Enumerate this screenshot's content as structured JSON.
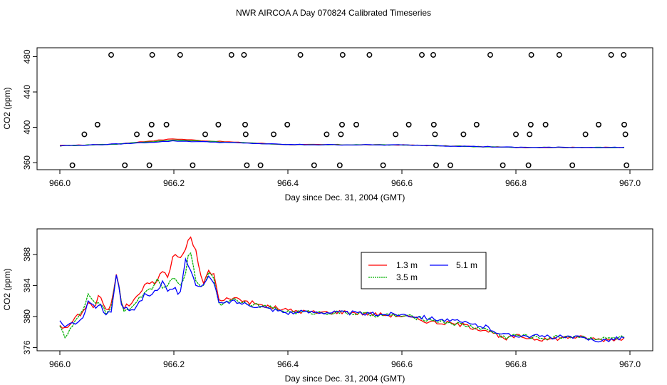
{
  "title": "NWR AIRCOA A  Day 070824  Calibrated Timeseries",
  "colors": {
    "h13": "#ff0000",
    "h35": "#00b000",
    "h51": "#0000ff",
    "axis": "#000000"
  },
  "chart_data": [
    {
      "type": "scatter+line",
      "title": "NWR AIRCOA A  Day 070824  Calibrated Timeseries",
      "xlabel": "Day since Dec. 31, 2004 (GMT)",
      "ylabel": "CO2 (ppm)",
      "xlim": [
        966.0,
        967.0
      ],
      "ylim": [
        354,
        484
      ],
      "xticks": [
        966.0,
        966.2,
        966.4,
        966.6,
        966.8,
        967.0
      ],
      "xtick_labels": [
        "966.0",
        "966.2",
        "966.4",
        "966.6",
        "966.8",
        "967.0"
      ],
      "yticks": [
        360,
        400,
        440,
        480
      ],
      "ytick_labels": [
        "360",
        "400",
        "440",
        "480"
      ],
      "calibration_points": [
        [
          966.022,
          357
        ],
        [
          966.043,
          392
        ],
        [
          966.066,
          403
        ],
        [
          966.09,
          482
        ],
        [
          966.114,
          357
        ],
        [
          966.135,
          392
        ],
        [
          966.157,
          357
        ],
        [
          966.159,
          392
        ],
        [
          966.161,
          403
        ],
        [
          966.162,
          482
        ],
        [
          966.187,
          403
        ],
        [
          966.211,
          482
        ],
        [
          966.233,
          357
        ],
        [
          966.255,
          392
        ],
        [
          966.278,
          403
        ],
        [
          966.301,
          482
        ],
        [
          966.323,
          482
        ],
        [
          966.325,
          403
        ],
        [
          966.326,
          392
        ],
        [
          966.328,
          357
        ],
        [
          966.352,
          357
        ],
        [
          966.375,
          392
        ],
        [
          966.399,
          403
        ],
        [
          966.422,
          482
        ],
        [
          966.446,
          357
        ],
        [
          966.468,
          392
        ],
        [
          966.491,
          357
        ],
        [
          966.493,
          392
        ],
        [
          966.495,
          403
        ],
        [
          966.496,
          482
        ],
        [
          966.52,
          403
        ],
        [
          966.543,
          482
        ],
        [
          966.567,
          357
        ],
        [
          966.589,
          392
        ],
        [
          966.612,
          403
        ],
        [
          966.635,
          482
        ],
        [
          966.655,
          482
        ],
        [
          966.656,
          403
        ],
        [
          966.658,
          392
        ],
        [
          966.66,
          357
        ],
        [
          966.685,
          357
        ],
        [
          966.708,
          392
        ],
        [
          966.731,
          403
        ],
        [
          966.755,
          482
        ],
        [
          966.777,
          357
        ],
        [
          966.8,
          392
        ],
        [
          966.822,
          357
        ],
        [
          966.824,
          392
        ],
        [
          966.826,
          403
        ],
        [
          966.827,
          482
        ],
        [
          966.852,
          403
        ],
        [
          966.876,
          482
        ],
        [
          966.899,
          357
        ],
        [
          966.922,
          392
        ],
        [
          966.945,
          403
        ],
        [
          966.967,
          482
        ],
        [
          966.989,
          482
        ],
        [
          966.99,
          403
        ],
        [
          966.992,
          392
        ],
        [
          966.994,
          357
        ]
      ],
      "series": [
        {
          "name": "1.3 m",
          "x": [
            966.0,
            966.1,
            966.2,
            966.26,
            966.4,
            966.6,
            966.8,
            966.99
          ],
          "values": [
            379.2,
            381.0,
            387.0,
            384.5,
            380.4,
            380.0,
            377.2,
            377.2
          ]
        },
        {
          "name": "3.5 m",
          "x": [
            966.0,
            966.1,
            966.2,
            966.26,
            966.4,
            966.6,
            966.8,
            966.99
          ],
          "values": [
            379.0,
            381.0,
            385.5,
            384.0,
            380.4,
            380.0,
            377.2,
            377.2
          ]
        },
        {
          "name": "5.1 m",
          "x": [
            966.0,
            966.1,
            966.2,
            966.26,
            966.4,
            966.6,
            966.8,
            966.99
          ],
          "values": [
            379.0,
            381.0,
            384.5,
            383.5,
            380.4,
            380.0,
            377.3,
            377.2
          ]
        }
      ]
    },
    {
      "type": "line",
      "xlabel": "Day since Dec. 31, 2004 (GMT)",
      "ylabel": "CO2 (ppm)",
      "xlim": [
        966.0,
        967.0
      ],
      "ylim": [
        375.9,
        390.7
      ],
      "xticks": [
        966.0,
        966.2,
        966.4,
        966.6,
        966.8,
        967.0
      ],
      "xtick_labels": [
        "966.0",
        "966.2",
        "966.4",
        "966.6",
        "966.8",
        "967.0"
      ],
      "yticks": [
        376,
        380,
        384,
        388
      ],
      "ytick_labels": [
        "376",
        "380",
        "384",
        "388"
      ],
      "legend": {
        "position": "upper-center",
        "entries": [
          "1.3 m",
          "5.1 m",
          "3.5 m"
        ]
      },
      "series": [
        {
          "name": "1.3 m",
          "color": "#ff0000",
          "x": [
            966.0,
            966.01,
            966.02,
            966.03,
            966.04,
            966.05,
            966.06,
            966.07,
            966.08,
            966.09,
            966.1,
            966.11,
            966.12,
            966.13,
            966.14,
            966.15,
            966.16,
            966.17,
            966.18,
            966.19,
            966.2,
            966.21,
            966.22,
            966.228,
            966.24,
            966.25,
            966.26,
            966.27,
            966.28,
            966.3,
            966.35,
            966.4,
            966.45,
            966.5,
            966.55,
            966.6,
            966.65,
            966.7,
            966.75,
            966.78,
            966.8,
            966.85,
            966.9,
            966.95,
            966.99
          ],
          "values": [
            379.0,
            378.3,
            379.2,
            380.0,
            380.5,
            382.0,
            381.0,
            383.0,
            380.6,
            381.5,
            386.0,
            381.0,
            381.5,
            382.0,
            383.2,
            384.0,
            384.5,
            384.4,
            386.0,
            385.0,
            388.2,
            387.5,
            388.5,
            390.3,
            388.2,
            384.0,
            385.8,
            385.5,
            381.8,
            382.5,
            381.5,
            380.8,
            380.5,
            380.6,
            380.3,
            380.1,
            379.3,
            379.0,
            378.2,
            377.0,
            377.5,
            377.0,
            377.4,
            377.0,
            377.2
          ]
        },
        {
          "name": "3.5 m",
          "color": "#00b000",
          "x": [
            966.0,
            966.01,
            966.02,
            966.03,
            966.04,
            966.05,
            966.06,
            966.07,
            966.08,
            966.09,
            966.1,
            966.11,
            966.12,
            966.13,
            966.14,
            966.15,
            966.16,
            966.17,
            966.18,
            966.19,
            966.2,
            966.21,
            966.22,
            966.228,
            966.24,
            966.25,
            966.26,
            966.27,
            966.28,
            966.3,
            966.35,
            966.4,
            966.45,
            966.5,
            966.55,
            966.6,
            966.65,
            966.7,
            966.75,
            966.78,
            966.8,
            966.85,
            966.9,
            966.95,
            966.99
          ],
          "values": [
            379.0,
            377.2,
            378.5,
            379.8,
            380.5,
            382.8,
            381.8,
            382.0,
            380.5,
            381.0,
            385.5,
            380.8,
            381.0,
            381.5,
            382.3,
            383.3,
            383.5,
            384.8,
            383.4,
            384.0,
            385.5,
            383.5,
            385.5,
            388.8,
            384.0,
            384.0,
            385.5,
            385.0,
            381.4,
            382.3,
            381.4,
            380.6,
            380.5,
            380.5,
            380.2,
            380.1,
            379.6,
            379.0,
            378.3,
            377.3,
            377.6,
            377.2,
            377.5,
            377.1,
            377.3
          ]
        },
        {
          "name": "5.1 m",
          "color": "#0000ff",
          "x": [
            966.0,
            966.01,
            966.02,
            966.03,
            966.04,
            966.05,
            966.06,
            966.07,
            966.08,
            966.09,
            966.1,
            966.11,
            966.12,
            966.13,
            966.14,
            966.15,
            966.16,
            966.17,
            966.18,
            966.19,
            966.2,
            966.21,
            966.22,
            966.228,
            966.24,
            966.25,
            966.26,
            966.27,
            966.28,
            966.3,
            966.35,
            966.4,
            966.45,
            966.5,
            966.55,
            966.6,
            966.65,
            966.7,
            966.75,
            966.78,
            966.8,
            966.85,
            966.9,
            966.95,
            966.99
          ],
          "values": [
            379.2,
            378.5,
            379.4,
            378.8,
            380.0,
            382.0,
            381.2,
            381.5,
            380.3,
            380.6,
            385.8,
            380.7,
            381.0,
            381.0,
            381.8,
            383.0,
            382.7,
            383.5,
            384.4,
            383.0,
            383.8,
            382.5,
            387.3,
            386.5,
            383.8,
            383.8,
            385.0,
            384.5,
            381.5,
            382.0,
            381.3,
            380.5,
            380.6,
            380.5,
            380.3,
            380.3,
            379.8,
            379.3,
            378.6,
            377.6,
            377.6,
            377.4,
            377.3,
            376.9,
            377.3
          ]
        }
      ]
    }
  ]
}
